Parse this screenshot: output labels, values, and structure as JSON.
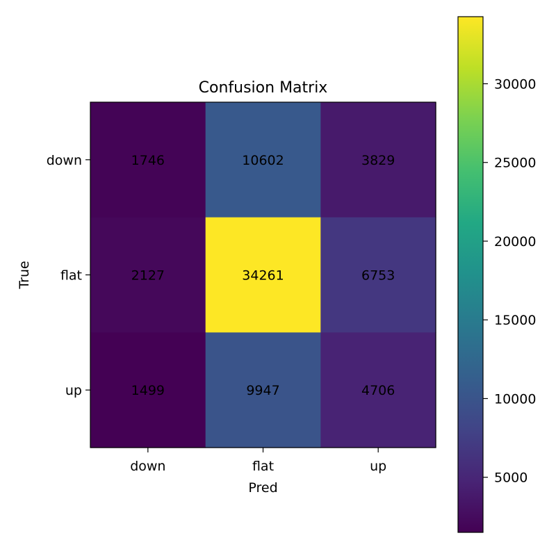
{
  "chart_data": {
    "type": "heatmap",
    "title": "Confusion Matrix",
    "xlabel": "Pred",
    "ylabel": "True",
    "x_categories": [
      "down",
      "flat",
      "up"
    ],
    "y_categories": [
      "down",
      "flat",
      "up"
    ],
    "values": [
      [
        1746,
        10602,
        3829
      ],
      [
        2127,
        34261,
        6753
      ],
      [
        1499,
        9947,
        4706
      ]
    ],
    "colormap": "viridis",
    "colorbar": {
      "min": 1499,
      "max": 34261,
      "ticks": [
        5000,
        10000,
        15000,
        20000,
        25000,
        30000
      ],
      "tick_labels": [
        "5000",
        "10000",
        "15000",
        "20000",
        "25000",
        "30000"
      ]
    },
    "grid": false
  }
}
